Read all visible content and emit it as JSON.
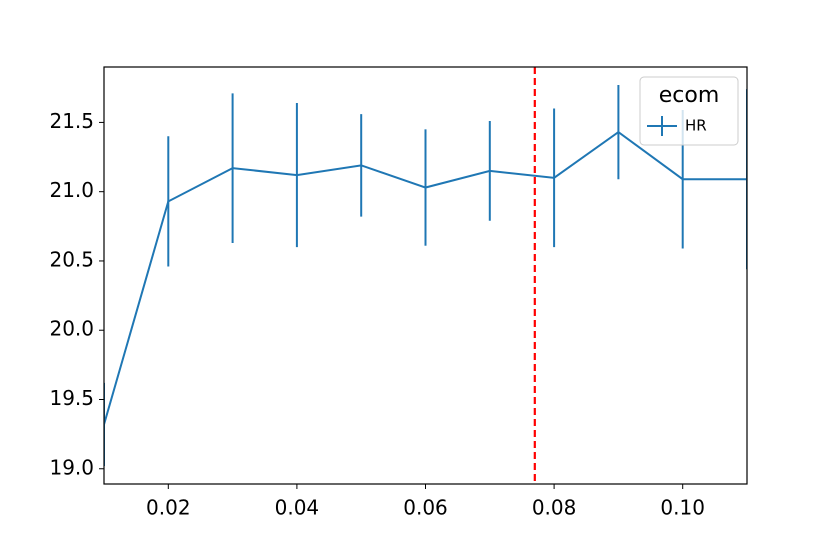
{
  "chart_data": {
    "type": "errorbar",
    "x": [
      0.01,
      0.02,
      0.03,
      0.04,
      0.05,
      0.06,
      0.07,
      0.08,
      0.09,
      0.1,
      0.11
    ],
    "series": [
      {
        "name": "HR",
        "color": "#1f77b4",
        "values": [
          19.32,
          20.93,
          21.17,
          21.12,
          21.19,
          21.03,
          21.15,
          21.1,
          21.43,
          21.09,
          21.09
        ],
        "errors": [
          0.3,
          0.47,
          0.54,
          0.52,
          0.37,
          0.42,
          0.36,
          0.5,
          0.34,
          0.5,
          0.65
        ]
      }
    ],
    "legend_title": "ecom",
    "legend": "upper right",
    "vline": 0.077,
    "vline_color": "#ff0000",
    "xlim": [
      0.01,
      0.11
    ],
    "ylim": [
      18.89,
      21.9
    ],
    "xticks": [
      0.02,
      0.04,
      0.06,
      0.08,
      {
        "value": 0.1,
        "label": "0.10"
      }
    ],
    "yticks": [
      {
        "value": 19,
        "label": "19.0"
      },
      19.5,
      {
        "value": 20,
        "label": "20.0"
      },
      20.5,
      {
        "value": 21,
        "label": "21.0"
      },
      21.5
    ],
    "grid": false
  }
}
